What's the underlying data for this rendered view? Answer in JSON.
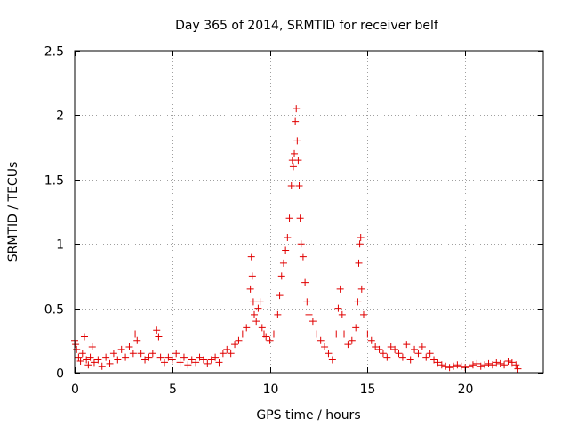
{
  "colors": {
    "marker": "#e00000",
    "grid": "#a0a0a0",
    "axis": "#000000",
    "background": "#ffffff"
  },
  "chart_data": {
    "type": "scatter",
    "title": "Day 365 of 2014, SRMTID for receiver belf",
    "xlabel": "GPS time / hours",
    "ylabel": "SRMTID / TECUs",
    "xlim": [
      0,
      24
    ],
    "ylim": [
      0,
      2.5
    ],
    "xticks": [
      0,
      5,
      10,
      15,
      20
    ],
    "xtick_labels": [
      "0",
      "5",
      "10",
      "15",
      "20"
    ],
    "yticks": [
      0,
      0.5,
      1,
      1.5,
      2,
      2.5
    ],
    "ytick_labels": [
      "0",
      "0.5",
      "1",
      "1.5",
      "2",
      "2.5"
    ],
    "grid": true,
    "marker": "+",
    "series": [
      {
        "name": "SRMTID",
        "x": [
          0.0,
          0.05,
          0.1,
          0.2,
          0.3,
          0.4,
          0.5,
          0.6,
          0.7,
          0.8,
          0.9,
          1.0,
          1.2,
          1.4,
          1.6,
          1.8,
          2.0,
          2.2,
          2.4,
          2.6,
          2.8,
          3.0,
          3.1,
          3.2,
          3.4,
          3.6,
          3.8,
          4.0,
          4.2,
          4.3,
          4.4,
          4.6,
          4.8,
          5.0,
          5.2,
          5.4,
          5.6,
          5.8,
          6.0,
          6.2,
          6.4,
          6.6,
          6.8,
          7.0,
          7.2,
          7.4,
          7.6,
          7.8,
          8.0,
          8.2,
          8.4,
          8.6,
          8.8,
          9.0,
          9.05,
          9.1,
          9.15,
          9.2,
          9.3,
          9.4,
          9.5,
          9.6,
          9.7,
          9.8,
          10.0,
          10.2,
          10.4,
          10.5,
          10.6,
          10.7,
          10.8,
          10.9,
          11.0,
          11.1,
          11.15,
          11.2,
          11.25,
          11.3,
          11.35,
          11.4,
          11.45,
          11.5,
          11.55,
          11.6,
          11.7,
          11.8,
          11.9,
          12.0,
          12.2,
          12.4,
          12.6,
          12.8,
          13.0,
          13.2,
          13.4,
          13.5,
          13.6,
          13.7,
          13.8,
          14.0,
          14.2,
          14.4,
          14.5,
          14.55,
          14.6,
          14.65,
          14.7,
          14.8,
          15.0,
          15.2,
          15.4,
          15.6,
          15.8,
          16.0,
          16.2,
          16.4,
          16.6,
          16.8,
          17.0,
          17.2,
          17.4,
          17.6,
          17.8,
          18.0,
          18.2,
          18.4,
          18.6,
          18.8,
          19.0,
          19.2,
          19.4,
          19.6,
          19.8,
          20.0,
          20.2,
          20.4,
          20.6,
          20.8,
          21.0,
          21.2,
          21.4,
          21.6,
          21.8,
          22.0,
          22.2,
          22.4,
          22.6,
          22.7
        ],
        "y": [
          0.25,
          0.22,
          0.18,
          0.12,
          0.09,
          0.15,
          0.28,
          0.1,
          0.06,
          0.12,
          0.2,
          0.08,
          0.1,
          0.05,
          0.12,
          0.07,
          0.15,
          0.1,
          0.18,
          0.12,
          0.2,
          0.15,
          0.3,
          0.25,
          0.15,
          0.1,
          0.12,
          0.15,
          0.33,
          0.28,
          0.12,
          0.08,
          0.12,
          0.1,
          0.15,
          0.08,
          0.12,
          0.06,
          0.1,
          0.08,
          0.12,
          0.1,
          0.07,
          0.1,
          0.12,
          0.08,
          0.15,
          0.18,
          0.15,
          0.22,
          0.25,
          0.3,
          0.35,
          0.65,
          0.9,
          0.75,
          0.55,
          0.45,
          0.4,
          0.5,
          0.55,
          0.35,
          0.3,
          0.28,
          0.25,
          0.3,
          0.45,
          0.6,
          0.75,
          0.85,
          0.95,
          1.05,
          1.2,
          1.45,
          1.65,
          1.6,
          1.7,
          1.95,
          2.05,
          1.8,
          1.65,
          1.45,
          1.2,
          1.0,
          0.9,
          0.7,
          0.55,
          0.45,
          0.4,
          0.3,
          0.25,
          0.2,
          0.15,
          0.1,
          0.3,
          0.5,
          0.65,
          0.45,
          0.3,
          0.22,
          0.25,
          0.35,
          0.55,
          0.85,
          1.0,
          1.05,
          0.65,
          0.45,
          0.3,
          0.25,
          0.2,
          0.18,
          0.15,
          0.12,
          0.2,
          0.18,
          0.15,
          0.12,
          0.22,
          0.1,
          0.18,
          0.15,
          0.2,
          0.12,
          0.15,
          0.1,
          0.08,
          0.06,
          0.05,
          0.04,
          0.05,
          0.06,
          0.05,
          0.04,
          0.05,
          0.06,
          0.07,
          0.05,
          0.06,
          0.07,
          0.06,
          0.08,
          0.07,
          0.06,
          0.09,
          0.08,
          0.06,
          0.03
        ]
      }
    ]
  }
}
